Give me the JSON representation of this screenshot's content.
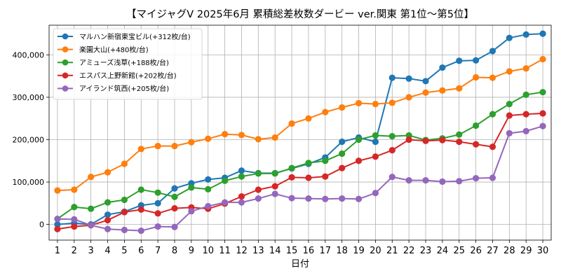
{
  "chart_data": {
    "type": "line",
    "title": "【マイジャグV 2025年6月  累積総差枚数ダービー ver.関東 第1位～第5位】",
    "xlabel": "日付",
    "ylabel": "",
    "x": [
      1,
      2,
      3,
      4,
      5,
      6,
      7,
      8,
      9,
      10,
      11,
      12,
      13,
      14,
      15,
      16,
      17,
      18,
      19,
      20,
      21,
      22,
      23,
      24,
      25,
      26,
      27,
      28,
      29,
      30
    ],
    "xlim": [
      0.5,
      30.5
    ],
    "ylim": [
      -37000,
      470000
    ],
    "yticks": [
      0,
      100000,
      200000,
      300000,
      400000
    ],
    "ytick_labels": [
      "0",
      "100,000",
      "200,000",
      "300,000",
      "400,000"
    ],
    "grid": true,
    "legend_position": "top-left",
    "series": [
      {
        "name": "マルハン新宿東宝ビル(+312枚/台)",
        "color": "#1f77b4",
        "values": [
          0,
          3000,
          0,
          23000,
          30000,
          45000,
          50000,
          85000,
          97000,
          106000,
          110000,
          127000,
          121000,
          121000,
          132000,
          143000,
          158000,
          195000,
          205000,
          195000,
          346000,
          344000,
          338000,
          370000,
          386000,
          387000,
          409000,
          440000,
          448000,
          450000
        ]
      },
      {
        "name": "楽園大山(+480枚/台)",
        "color": "#ff7f0e",
        "values": [
          80000,
          82000,
          112000,
          123000,
          143000,
          178000,
          185000,
          185000,
          194000,
          202000,
          213000,
          211000,
          201000,
          205000,
          238000,
          250000,
          265000,
          276000,
          286000,
          284000,
          287000,
          300000,
          311000,
          316000,
          321000,
          347000,
          346000,
          361000,
          368000,
          390000
        ]
      },
      {
        "name": "アミューズ浅草(+188枚/台)",
        "color": "#2ca02c",
        "values": [
          13000,
          41000,
          37000,
          52000,
          58000,
          82000,
          75000,
          65000,
          87000,
          83000,
          103000,
          113000,
          120000,
          120000,
          133000,
          145000,
          150000,
          167000,
          200000,
          210000,
          208000,
          210000,
          199000,
          203000,
          212000,
          233000,
          260000,
          284000,
          306000,
          312000
        ]
      },
      {
        "name": "エスパス上野新館(+202枚/台)",
        "color": "#d62728",
        "values": [
          -11000,
          -5000,
          -2000,
          10000,
          29000,
          35000,
          26000,
          38000,
          40000,
          37000,
          49000,
          66000,
          82000,
          90000,
          111000,
          110000,
          113000,
          133000,
          150000,
          160000,
          175000,
          200000,
          197000,
          199000,
          195000,
          189000,
          183000,
          257000,
          260000,
          262000
        ]
      },
      {
        "name": "アイランド筑西(+205枚/台)",
        "color": "#9467bd",
        "values": [
          13000,
          12000,
          -2000,
          -11000,
          -13000,
          -15000,
          -5000,
          -6000,
          31000,
          43000,
          52000,
          52000,
          61000,
          72000,
          62000,
          61000,
          60000,
          61000,
          60000,
          74000,
          112000,
          104000,
          104000,
          101000,
          102000,
          109000,
          110000,
          215000,
          220000,
          232000
        ]
      }
    ]
  }
}
